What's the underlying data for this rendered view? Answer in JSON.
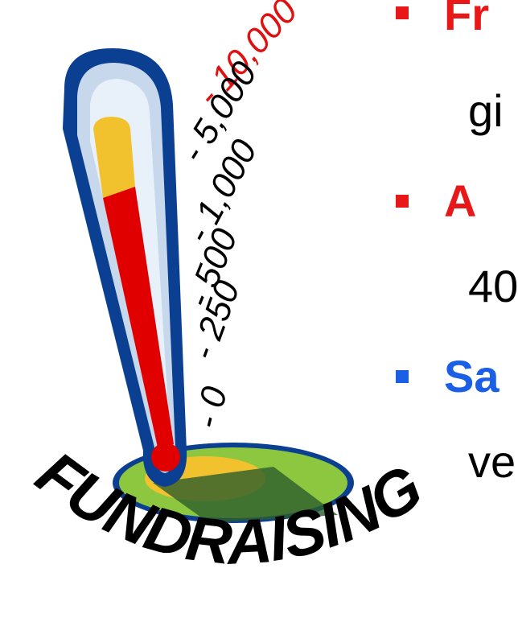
{
  "clipart": {
    "arc_text": "FUNDRAISING",
    "scale_labels": [
      "- 10,000",
      "- 5,000",
      "- 1,000",
      "- 500",
      "- 250",
      "- 0"
    ],
    "fill_level": 0.82,
    "colors": {
      "outline": "#0b3f92",
      "glass": "#c8d8ec",
      "mercury": "#e00000",
      "mercury_top": "#f2c22e",
      "ground": "#8dc63f",
      "ground_shadow": "#2c5e2c",
      "accent_label": "#e01010"
    }
  },
  "bullets": [
    {
      "heading": "Fr",
      "body": "gi",
      "color": "#e81818"
    },
    {
      "heading": "A",
      "body": "40",
      "color": "#e81818"
    },
    {
      "heading": "Sa",
      "body": "ve",
      "color": "#1a5fe6"
    }
  ]
}
